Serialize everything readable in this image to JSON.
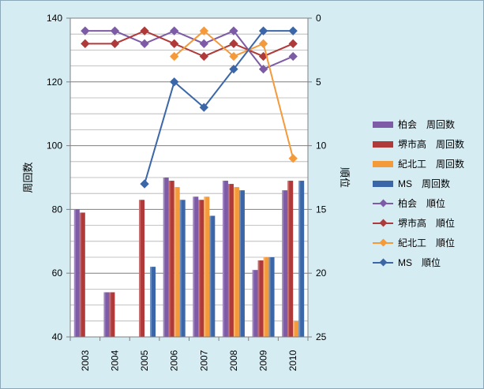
{
  "chart_data": {
    "type": "bar+line",
    "categories": [
      "2003",
      "2004",
      "2005",
      "2006",
      "2007",
      "2008",
      "2009",
      "2010"
    ],
    "left_axis": {
      "label": "周回数",
      "min": 40,
      "max": 140,
      "ticks": [
        40,
        60,
        80,
        100,
        120,
        140
      ]
    },
    "right_axis": {
      "label": "順位",
      "min": 0,
      "max": 25,
      "reversed": true,
      "ticks": [
        0,
        5,
        10,
        15,
        20,
        25
      ]
    },
    "bar_series": [
      {
        "name": "柏会　周回数",
        "color": "#7d5ba6",
        "values": [
          80,
          54,
          null,
          90,
          84,
          89,
          61,
          86
        ]
      },
      {
        "name": "堺市高　周回数",
        "color": "#b03a3a",
        "values": [
          79,
          54,
          83,
          89,
          83,
          88,
          64,
          89
        ]
      },
      {
        "name": "紀北工　周回数",
        "color": "#f59a3a",
        "values": [
          null,
          null,
          null,
          87,
          84,
          87,
          65,
          45
        ]
      },
      {
        "name": "MS　周回数",
        "color": "#3b67a8",
        "values": [
          null,
          40,
          62,
          83,
          78,
          86,
          65,
          89
        ]
      }
    ],
    "line_series": [
      {
        "name": "柏会　順位",
        "color": "#7d5ba6",
        "values": [
          1,
          1,
          2,
          1,
          2,
          1,
          4,
          3
        ]
      },
      {
        "name": "堺市高　順位",
        "color": "#b03a3a",
        "values": [
          2,
          2,
          1,
          2,
          3,
          2,
          3,
          2
        ]
      },
      {
        "name": "紀北工　順位",
        "color": "#f59a3a",
        "values": [
          null,
          null,
          null,
          3,
          1,
          3,
          2,
          11
        ]
      },
      {
        "name": "MS　順位",
        "color": "#3b67a8",
        "values": [
          null,
          null,
          13,
          5,
          7,
          4,
          1,
          1
        ]
      }
    ],
    "grid": true,
    "legend_position": "right"
  }
}
